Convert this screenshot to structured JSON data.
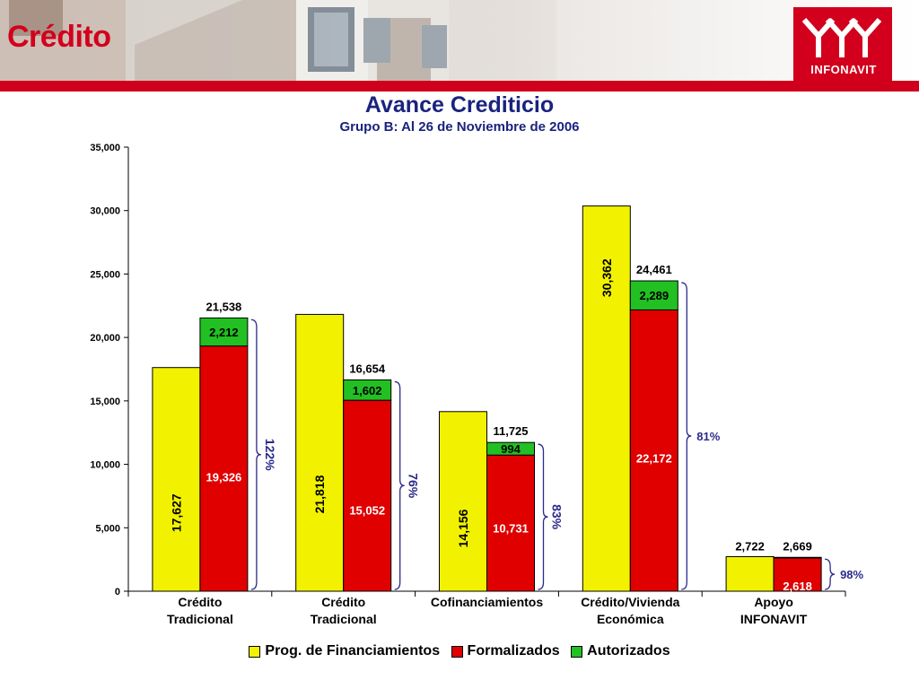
{
  "header": {
    "page_title": "Crédito",
    "logo_text": "INFONAVIT"
  },
  "colors": {
    "accent_red": "#d0001c",
    "title_navy": "#1a237e",
    "bracket_navy": "#2b2b8a",
    "yellow": "#f2f200",
    "red": "#e00000",
    "green": "#22c022"
  },
  "chart_data": {
    "type": "bar",
    "title": "Avance Crediticio",
    "subtitle": "Grupo B: Al 26 de Noviembre de 2006",
    "ylim": [
      0,
      35000
    ],
    "y_ticks": [
      "0",
      "5,000",
      "10,000",
      "15,000",
      "20,000",
      "25,000",
      "30,000",
      "35,000"
    ],
    "grid": false,
    "legend_position": "bottom",
    "legend": [
      "Prog. de Financiamientos",
      "Formalizados",
      "Autorizados"
    ],
    "categories": [
      [
        "Crédito",
        "Tradicional"
      ],
      [
        "Crédito",
        "Tradicional"
      ],
      [
        "Cofinanciamientos"
      ],
      [
        "Crédito/Vivienda",
        "Económica"
      ],
      [
        "Apoyo",
        "INFONAVIT"
      ]
    ],
    "series": [
      {
        "name": "Prog. de Financiamientos",
        "values": [
          17627,
          21818,
          14156,
          30362,
          2722
        ],
        "labels": [
          "17,627",
          "21,818",
          "14,156",
          "30,362",
          "2,722"
        ]
      },
      {
        "name": "Formalizados",
        "values": [
          19326,
          15052,
          10731,
          22172,
          2618
        ],
        "labels": [
          "19,326",
          "15,052",
          "10,731",
          "22,172",
          "2,618"
        ]
      },
      {
        "name": "Autorizados",
        "values": [
          2212,
          1602,
          994,
          2289,
          51
        ],
        "labels": [
          "2,212",
          "1,602",
          "994",
          "2,289",
          ""
        ]
      }
    ],
    "totals": [
      "21,538",
      "16,654",
      "11,725",
      "24,461",
      "2,669"
    ],
    "percentages": [
      "122%",
      "76%",
      "83%",
      "81%",
      "98%"
    ]
  }
}
